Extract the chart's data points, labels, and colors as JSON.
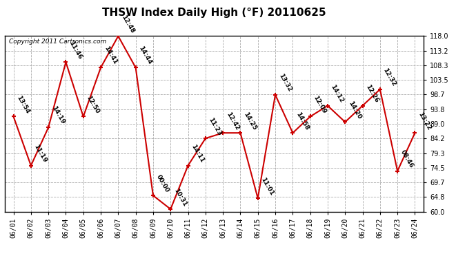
{
  "title": "THSW Index Daily High (°F) 20110625",
  "copyright": "Copyright 2011 Cartronics.com",
  "x_labels": [
    "06/01",
    "06/02",
    "06/03",
    "06/04",
    "06/05",
    "06/06",
    "06/07",
    "06/08",
    "06/09",
    "06/10",
    "06/11",
    "06/12",
    "06/13",
    "06/14",
    "06/15",
    "06/16",
    "06/17",
    "06/18",
    "06/19",
    "06/20",
    "06/21",
    "06/22",
    "06/23",
    "06/24"
  ],
  "y_values": [
    91.4,
    75.2,
    87.8,
    109.4,
    91.4,
    107.6,
    118.0,
    107.6,
    65.3,
    60.8,
    75.2,
    84.2,
    86.0,
    86.0,
    64.4,
    98.6,
    86.0,
    91.4,
    95.0,
    89.6,
    95.0,
    100.4,
    73.4,
    86.0
  ],
  "time_labels": [
    "13:54",
    "11:19",
    "14:19",
    "11:46",
    "12:50",
    "14:41",
    "12:48",
    "14:44",
    "00:00",
    "10:31",
    "14:11",
    "11:23",
    "12:42",
    "14:25",
    "11:01",
    "13:32",
    "14:58",
    "12:09",
    "14:12",
    "14:20",
    "12:26",
    "12:32",
    "08:46",
    "13:22"
  ],
  "y_ticks": [
    60.0,
    64.8,
    69.7,
    74.5,
    79.3,
    84.2,
    89.0,
    93.8,
    98.7,
    103.5,
    108.3,
    113.2,
    118.0
  ],
  "y_min": 60.0,
  "y_max": 118.0,
  "line_color": "#cc0000",
  "marker_color": "#cc0000",
  "grid_color": "#aaaaaa",
  "background_color": "#ffffff",
  "title_fontsize": 11,
  "tick_fontsize": 7,
  "annotation_fontsize": 6.5
}
